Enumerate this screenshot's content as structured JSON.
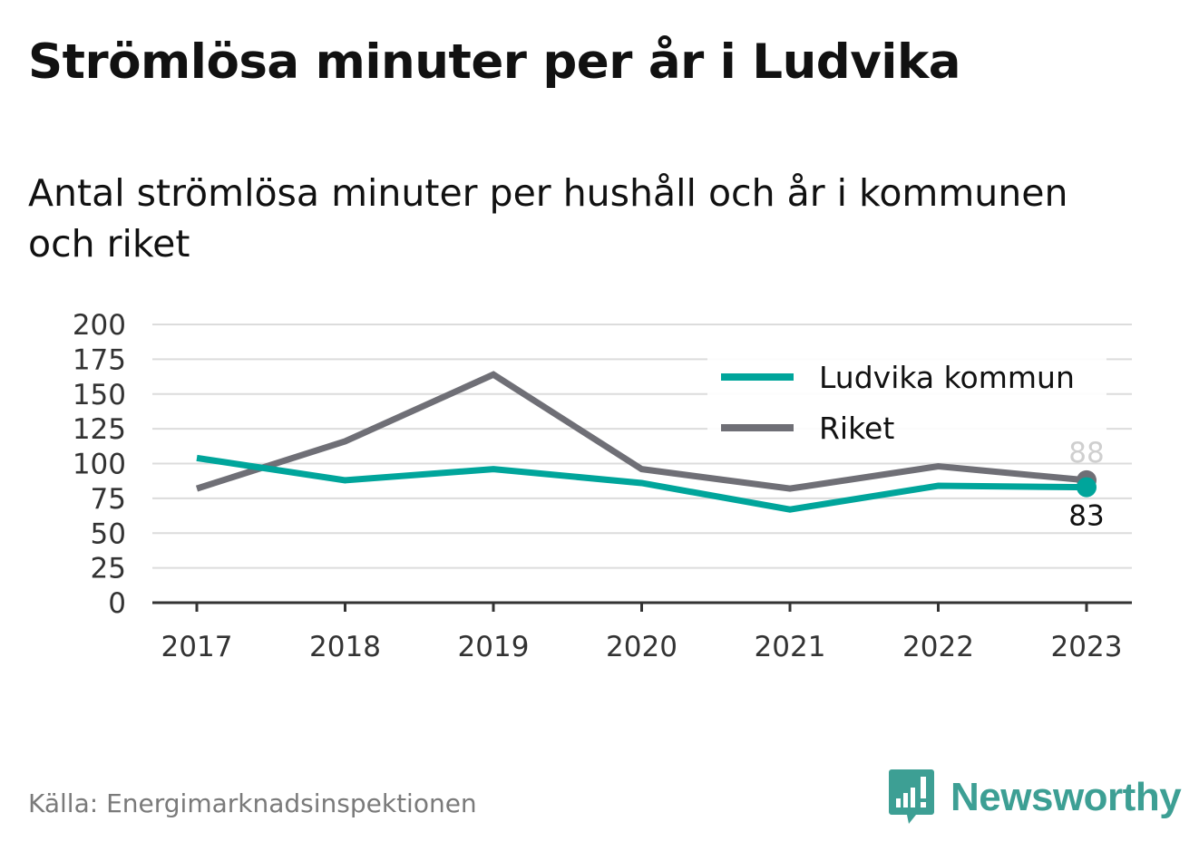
{
  "title": "Strömlösa minuter per år i Ludvika",
  "subtitle": "Antal strömlösa minuter per hushåll och år i kommunen och riket",
  "source": "Källa: Energimarknadsinspektionen",
  "brand": {
    "name": "Newsworthy",
    "icon": "newsworthy-logo-icon",
    "color": "#3d9f94"
  },
  "chart_data": {
    "type": "line",
    "x": [
      "2017",
      "2018",
      "2019",
      "2020",
      "2021",
      "2022",
      "2023"
    ],
    "ylim": [
      0,
      200
    ],
    "yticks": [
      0,
      25,
      50,
      75,
      100,
      125,
      150,
      175,
      200
    ],
    "grid": true,
    "legend_position": "top-right",
    "series": [
      {
        "name": "Ludvika kommun",
        "color": "#00a59b",
        "values": [
          104,
          88,
          96,
          86,
          67,
          84,
          83
        ],
        "end_label": "83"
      },
      {
        "name": "Riket",
        "color": "#6f6f76",
        "values": [
          82,
          116,
          164,
          96,
          82,
          98,
          88
        ],
        "end_label": "88"
      }
    ]
  }
}
